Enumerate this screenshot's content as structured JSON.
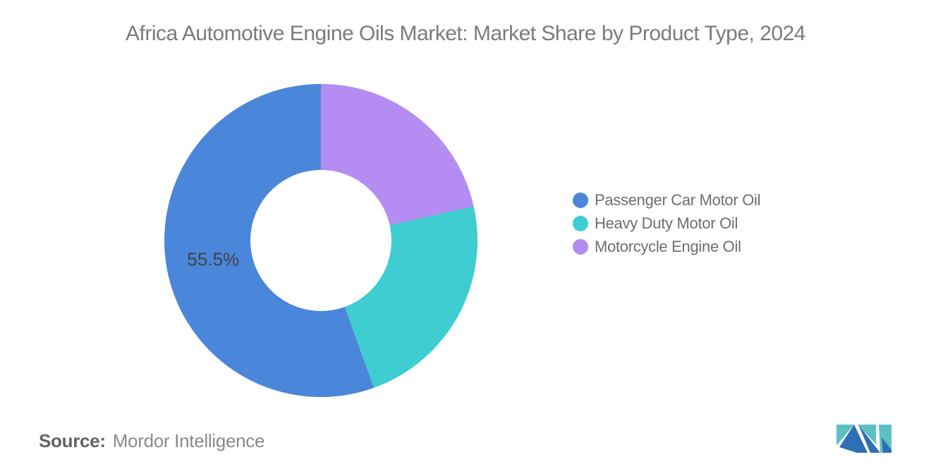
{
  "title": "Africa Automotive Engine Oils Market: Market Share by Product Type, 2024",
  "chart_data": {
    "type": "pie",
    "subtype": "donut",
    "title": "Africa Automotive Engine Oils Market: Market Share by Product Type, 2024",
    "values_unit": "%",
    "start_angle_deg": 0,
    "direction": "counterclockwise",
    "inner_radius_ratio": 0.45,
    "legend_position": "right",
    "series": [
      {
        "name": "Passenger Car Motor Oil",
        "value": 55.5,
        "color": "#4a86d9",
        "data_label": "55.5%"
      },
      {
        "name": "Heavy Duty Motor Oil",
        "value": 23.0,
        "color": "#3ecdd1",
        "data_label": ""
      },
      {
        "name": "Motorcycle Engine Oil",
        "value": 21.5,
        "color": "#b58cf1",
        "data_label": ""
      }
    ]
  },
  "data_label_color": "#404347",
  "source": {
    "label": "Source:",
    "value": "Mordor Intelligence"
  },
  "logo": {
    "name": "mordor-intelligence-logo",
    "teal": "#5ec0c3",
    "blue": "#2e6fb5"
  }
}
